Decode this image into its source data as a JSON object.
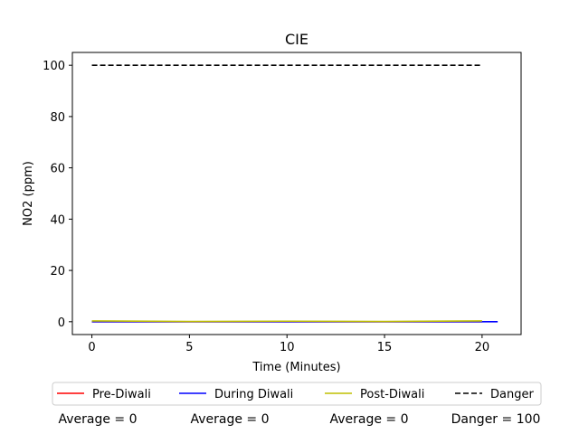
{
  "chart_data": {
    "type": "line",
    "title": "CIE",
    "xlabel": "Time (Minutes)",
    "ylabel": "NO2 (ppm)",
    "xlim": [
      -1,
      22
    ],
    "ylim": [
      -5,
      105
    ],
    "xticks": [
      0,
      5,
      10,
      15,
      20
    ],
    "yticks": [
      0,
      20,
      40,
      60,
      80,
      100
    ],
    "grid": false,
    "legend_position": "bottom",
    "series": [
      {
        "name": "Pre-Diwali",
        "color": "#ff0000",
        "style": "solid",
        "x": [
          0,
          20
        ],
        "y": [
          0,
          0
        ]
      },
      {
        "name": "During Diwali",
        "color": "#0000ff",
        "style": "solid",
        "x": [
          0,
          20.8
        ],
        "y": [
          0,
          0
        ]
      },
      {
        "name": "Post-Diwali",
        "color": "#bfbf00",
        "style": "solid",
        "x": [
          0,
          5,
          10,
          15,
          20
        ],
        "y": [
          0.3,
          0.1,
          0.2,
          0.1,
          0.3
        ]
      },
      {
        "name": "Danger",
        "color": "#000000",
        "style": "dashed",
        "x": [
          0,
          20
        ],
        "y": [
          100,
          100
        ]
      }
    ],
    "annotations": [
      "Average = 0",
      "Average = 0",
      "Average = 0",
      "Danger = 100"
    ]
  }
}
